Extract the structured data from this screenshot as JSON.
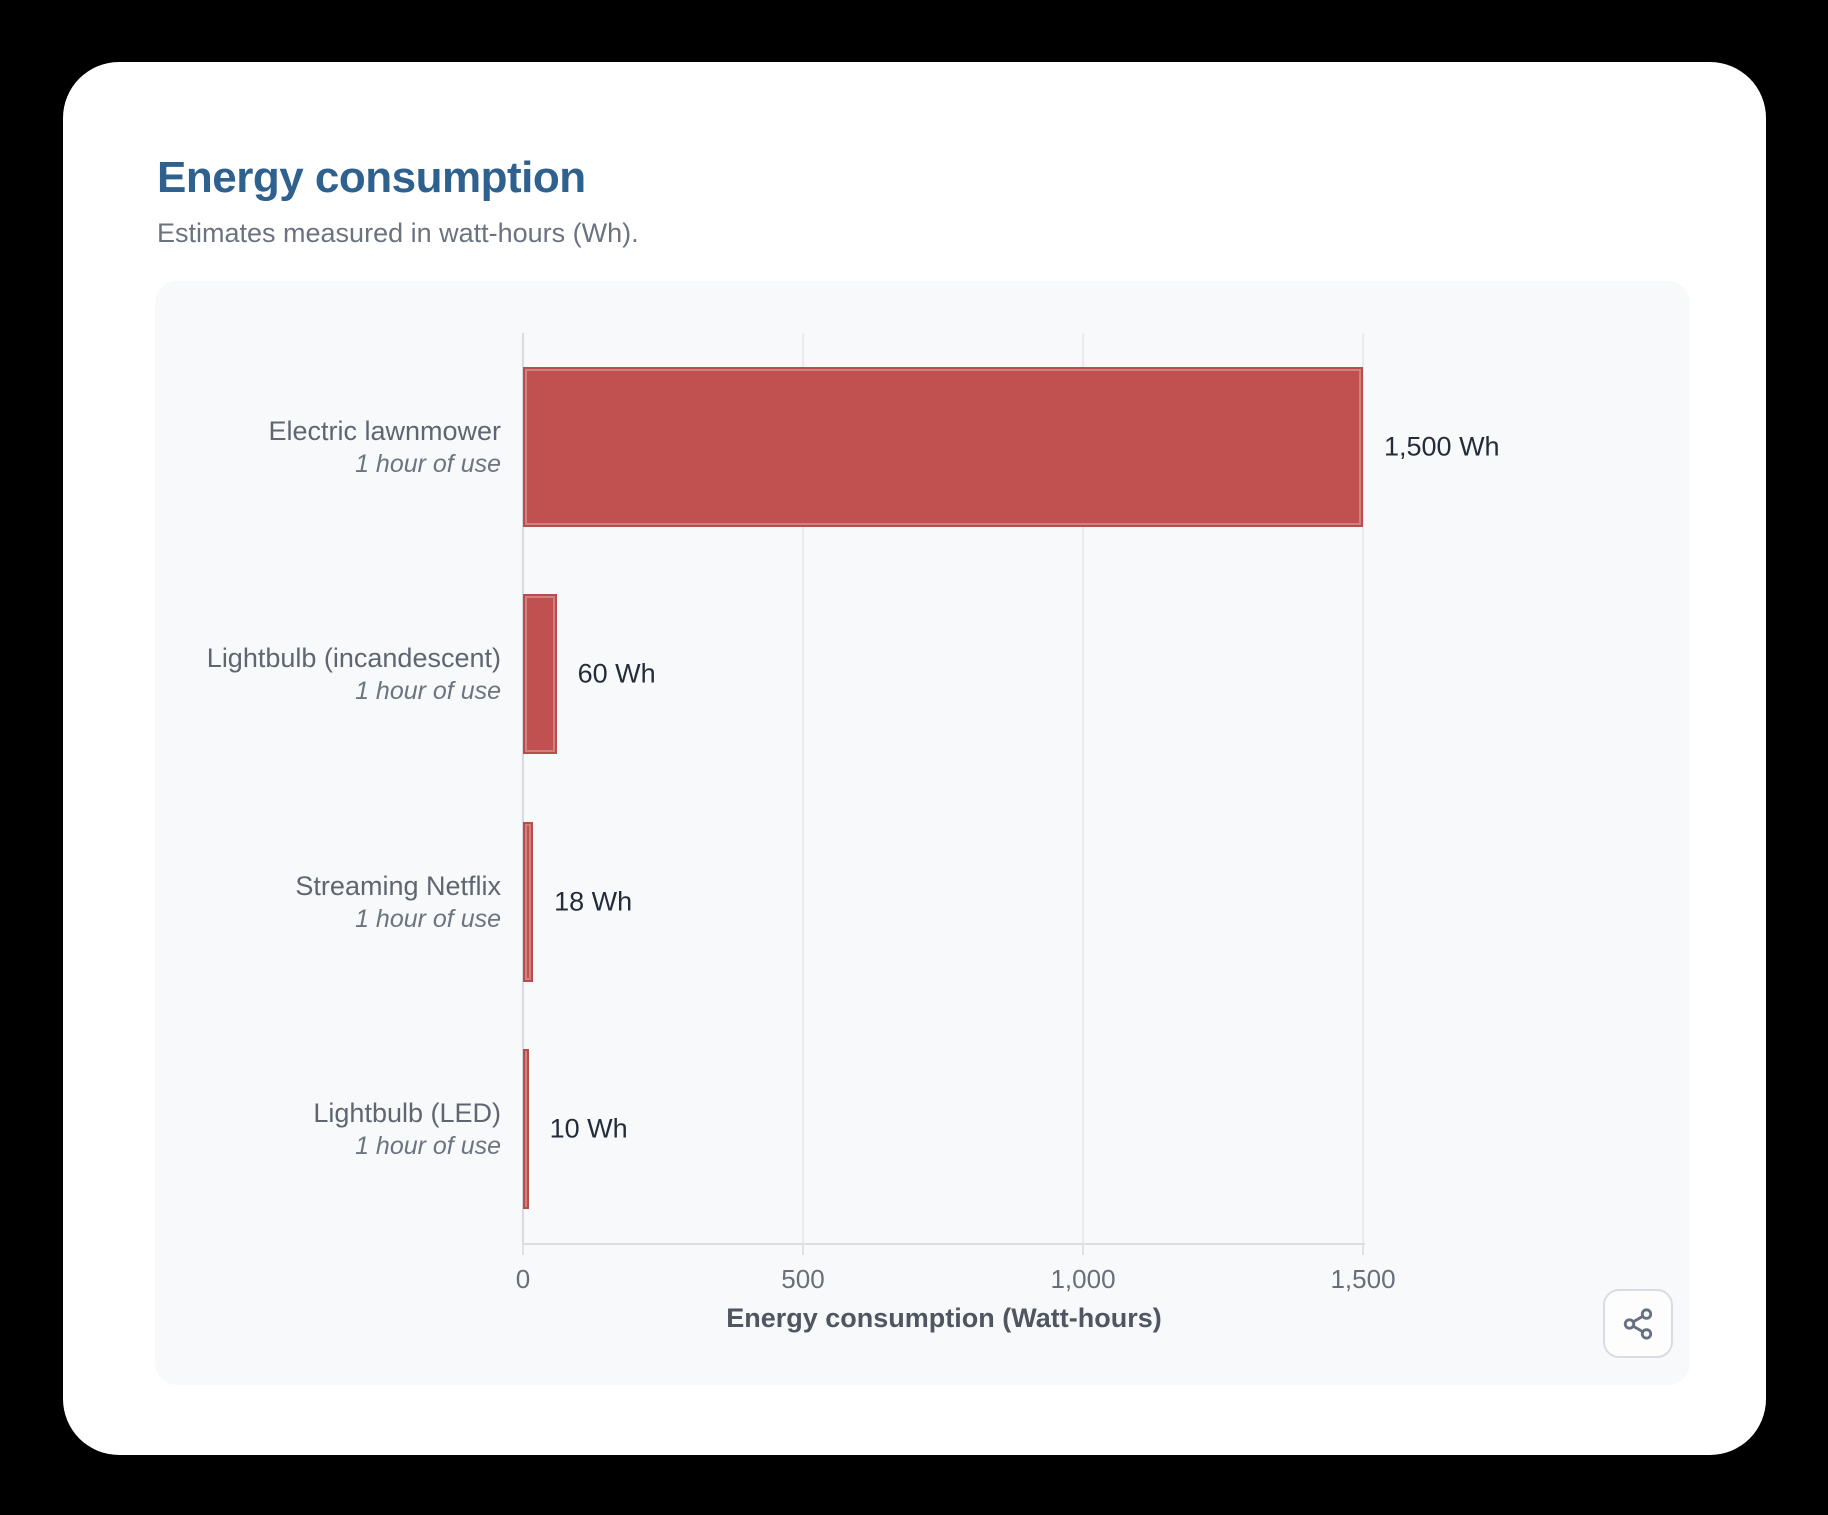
{
  "header": {
    "title": "Energy consumption",
    "subtitle": "Estimates measured in watt-hours (Wh)."
  },
  "chart_data": {
    "type": "bar",
    "orientation": "horizontal",
    "title": "Energy consumption",
    "subtitle": "Estimates measured in watt-hours (Wh).",
    "categories": [
      "Electric lawnmower",
      "Lightbulb (incandescent)",
      "Streaming Netflix",
      "Lightbulb (LED)"
    ],
    "category_sublabels": [
      "1 hour of use",
      "1 hour of use",
      "1 hour of use",
      "1 hour of use"
    ],
    "values": [
      1500,
      60,
      18,
      10
    ],
    "value_labels": [
      "1,500 Wh",
      "60 Wh",
      "18 Wh",
      "10 Wh"
    ],
    "xlabel": "Energy consumption (Watt-hours)",
    "xlim": [
      0,
      1500
    ],
    "xticks": [
      0,
      500,
      1000,
      1500
    ],
    "xtick_labels": [
      "0",
      "500",
      "1,000",
      "1,500"
    ],
    "grid": true,
    "legend": false,
    "bar_color": "#c05150",
    "title_color": "#2f618f",
    "panel_background": "#f8f9fb"
  },
  "footer": {
    "share_icon": "share-nodes"
  }
}
